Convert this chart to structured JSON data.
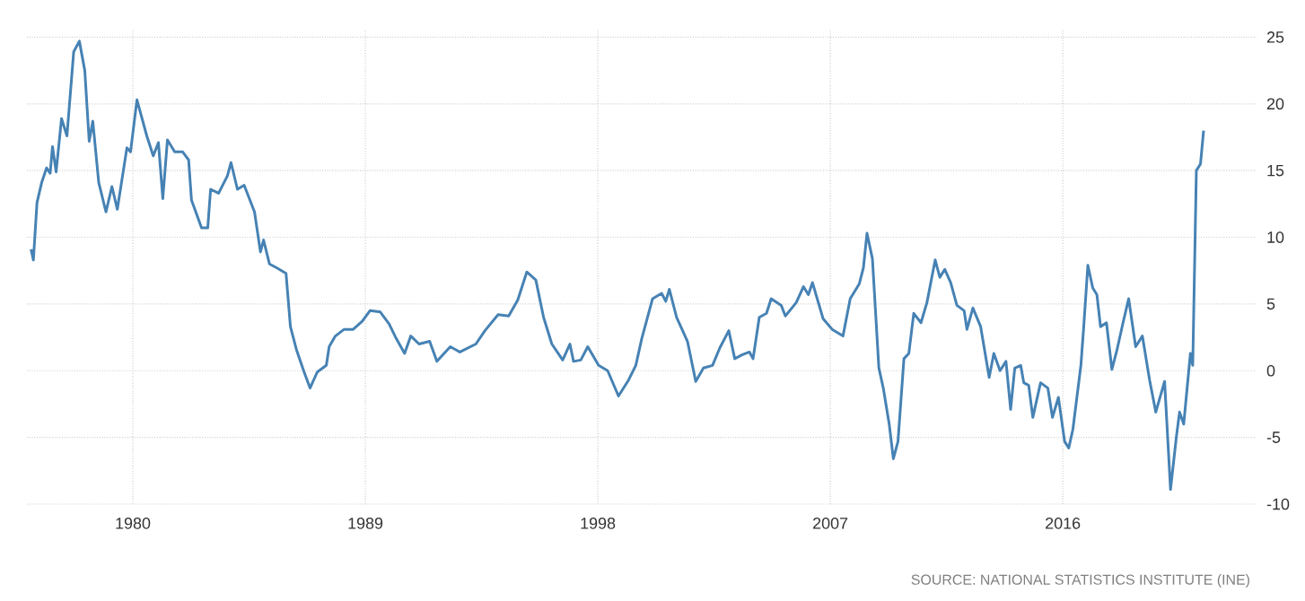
{
  "chart_data": {
    "type": "line",
    "x": [
      1976.06,
      1976.15,
      1976.29,
      1976.47,
      1976.66,
      1976.8,
      1976.89,
      1977.03,
      1977.24,
      1977.45,
      1977.71,
      1977.93,
      1978.14,
      1978.31,
      1978.45,
      1978.68,
      1978.96,
      1979.19,
      1979.4,
      1979.77,
      1979.91,
      1980.16,
      1980.54,
      1980.79,
      1980.99,
      1981.16,
      1981.34,
      1981.62,
      1981.93,
      1982.16,
      1982.27,
      1982.66,
      1982.9,
      1983.01,
      1983.32,
      1983.66,
      1983.8,
      1984.05,
      1984.31,
      1984.71,
      1984.94,
      1985.06,
      1985.29,
      1985.58,
      1985.93,
      1986.1,
      1986.33,
      1986.63,
      1986.86,
      1987.14,
      1987.49,
      1987.6,
      1987.84,
      1988.18,
      1988.53,
      1988.88,
      1989.18,
      1989.58,
      1989.92,
      1990.2,
      1990.52,
      1990.76,
      1991.08,
      1991.49,
      1991.77,
      1992.29,
      1992.66,
      1993.28,
      1993.63,
      1994.14,
      1994.55,
      1994.9,
      1995.25,
      1995.6,
      1995.9,
      1996.22,
      1996.64,
      1996.92,
      1997.06,
      1997.34,
      1997.61,
      1998.03,
      1998.38,
      1998.8,
      1999.19,
      1999.47,
      1999.7,
      2000.12,
      2000.47,
      2000.63,
      2000.77,
      2001.05,
      2001.47,
      2001.79,
      2002.09,
      2002.44,
      2002.72,
      2003.07,
      2003.3,
      2003.6,
      2003.87,
      2004.01,
      2004.25,
      2004.53,
      2004.71,
      2005.1,
      2005.26,
      2005.68,
      2005.96,
      2006.15,
      2006.31,
      2006.72,
      2007.07,
      2007.49,
      2007.77,
      2008.12,
      2008.28,
      2008.42,
      2008.63,
      2008.88,
      2009.05,
      2009.28,
      2009.44,
      2009.62,
      2009.85,
      2010.04,
      2010.23,
      2010.51,
      2010.74,
      2011.06,
      2011.24,
      2011.43,
      2011.66,
      2011.9,
      2012.18,
      2012.29,
      2012.52,
      2012.82,
      2013.15,
      2013.33,
      2013.57,
      2013.8,
      2013.98,
      2014.14,
      2014.37,
      2014.49,
      2014.68,
      2014.84,
      2015.14,
      2015.42,
      2015.6,
      2015.83,
      2016.07,
      2016.23,
      2016.39,
      2016.7,
      2016.81,
      2016.97,
      2017.16,
      2017.32,
      2017.46,
      2017.69,
      2017.9,
      2018.09,
      2018.32,
      2018.55,
      2018.82,
      2019.08,
      2019.36,
      2019.6,
      2019.94,
      2020.17,
      2020.4,
      2020.52,
      2020.68,
      2020.94,
      2021.03,
      2021.17,
      2021.33,
      2021.45
    ],
    "series": [
      {
        "color": "#4682b4",
        "values": [
          9.1,
          8.3,
          12.6,
          14.1,
          15.2,
          14.8,
          16.8,
          14.9,
          18.9,
          17.6,
          23.9,
          24.7,
          22.5,
          17.2,
          18.7,
          14.1,
          11.9,
          13.8,
          12.1,
          16.7,
          16.4,
          20.3,
          17.6,
          16.1,
          17.1,
          12.9,
          17.3,
          16.4,
          16.4,
          15.8,
          12.8,
          10.7,
          10.7,
          13.6,
          13.3,
          14.6,
          15.6,
          13.6,
          13.9,
          11.9,
          8.9,
          9.8,
          8.0,
          7.7,
          7.3,
          3.3,
          1.6,
          -0.1,
          -1.3,
          -0.1,
          0.4,
          1.8,
          2.6,
          3.1,
          3.1,
          3.7,
          4.5,
          4.4,
          3.5,
          2.4,
          1.3,
          2.6,
          2.0,
          2.2,
          0.7,
          1.8,
          1.4,
          2.0,
          3.0,
          4.2,
          4.1,
          5.3,
          7.4,
          6.8,
          4.0,
          2.0,
          0.8,
          2.0,
          0.7,
          0.8,
          1.8,
          0.4,
          0.0,
          -1.9,
          -0.7,
          0.4,
          2.4,
          5.4,
          5.8,
          5.2,
          6.1,
          4.0,
          2.2,
          -0.8,
          0.2,
          0.4,
          1.7,
          3.0,
          0.9,
          1.2,
          1.4,
          0.9,
          4.0,
          4.3,
          5.4,
          4.9,
          4.1,
          5.1,
          6.3,
          5.7,
          6.6,
          3.9,
          3.1,
          2.6,
          5.4,
          6.5,
          7.7,
          10.3,
          8.4,
          0.2,
          -1.3,
          -4.0,
          -6.6,
          -5.3,
          0.9,
          1.3,
          4.3,
          3.6,
          5.1,
          8.3,
          7.0,
          7.6,
          6.6,
          4.9,
          4.5,
          3.1,
          4.7,
          3.3,
          -0.5,
          1.3,
          0.0,
          0.7,
          -2.9,
          0.2,
          0.4,
          -0.9,
          -1.1,
          -3.5,
          -0.9,
          -1.3,
          -3.5,
          -2.0,
          -5.3,
          -5.8,
          -4.4,
          0.4,
          3.3,
          7.9,
          6.2,
          5.7,
          3.3,
          3.6,
          0.1,
          1.5,
          3.5,
          5.4,
          1.8,
          2.6,
          -0.7,
          -3.1,
          -0.8,
          -8.9,
          -4.9,
          -3.1,
          -4.0,
          1.3,
          0.4,
          15.0,
          15.5,
          18.0
        ]
      }
    ],
    "xlim": [
      1975.9,
      2023.5
    ],
    "ylim": [
      -10,
      25.5
    ],
    "xticks": [
      1980,
      1989,
      1998,
      2007,
      2016
    ],
    "yticks": [
      -10,
      -5,
      0,
      5,
      10,
      15,
      20,
      25
    ],
    "grid": true,
    "line_style": "solid",
    "marker": "none",
    "annotations": [
      "SOURCE: NATIONAL STATISTICS INSTITUTE (INE)"
    ]
  }
}
